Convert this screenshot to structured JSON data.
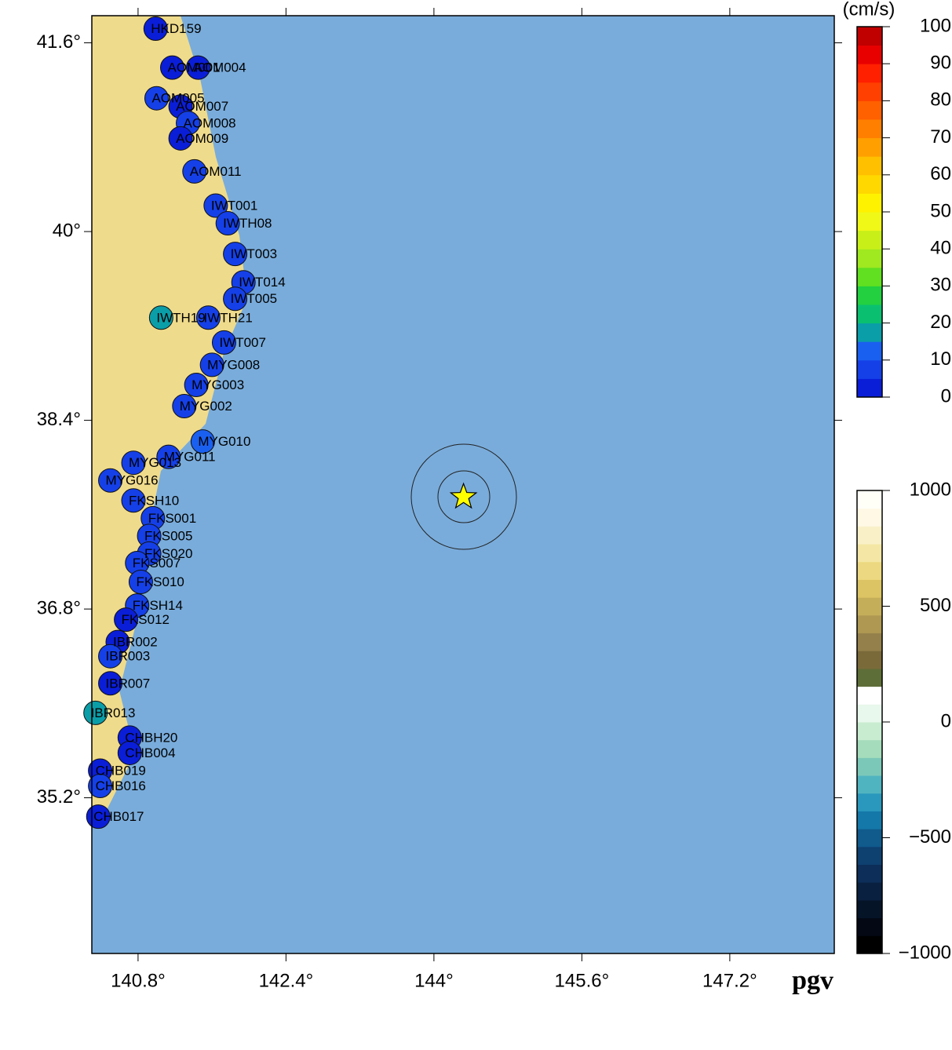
{
  "map": {
    "type": "map",
    "title": "pgv",
    "xlim": [
      140.3,
      148.33
    ],
    "ylim": [
      33.88,
      41.83
    ],
    "xticks": [
      {
        "value": 140.8,
        "label": "140.8°"
      },
      {
        "value": 142.4,
        "label": "142.4°"
      },
      {
        "value": 144,
        "label": "144°"
      },
      {
        "value": 145.6,
        "label": "145.6°"
      },
      {
        "value": 147.2,
        "label": "147.2°"
      }
    ],
    "yticks": [
      {
        "value": 41.6,
        "label": "41.6°"
      },
      {
        "value": 40,
        "label": "40°"
      },
      {
        "value": 38.4,
        "label": "38.4°"
      },
      {
        "value": 36.8,
        "label": "36.8°"
      },
      {
        "value": 35.2,
        "label": "35.2°"
      }
    ],
    "epicenter": {
      "lon": 144.32,
      "lat": 37.75
    },
    "stations": [
      {
        "name": "HKD159",
        "lon": 140.99,
        "lat": 41.72,
        "pgv": 3
      },
      {
        "name": "AOM001",
        "lon": 141.17,
        "lat": 41.39,
        "pgv": 4
      },
      {
        "name": "AOM004",
        "lon": 141.45,
        "lat": 41.39,
        "pgv": 3
      },
      {
        "name": "AOM005",
        "lon": 141.0,
        "lat": 41.13,
        "pgv": 5
      },
      {
        "name": "AOM007",
        "lon": 141.26,
        "lat": 41.06,
        "pgv": 4
      },
      {
        "name": "AOM008",
        "lon": 141.34,
        "lat": 40.92,
        "pgv": 5
      },
      {
        "name": "AOM009",
        "lon": 141.26,
        "lat": 40.79,
        "pgv": 4
      },
      {
        "name": "AOM011",
        "lon": 141.41,
        "lat": 40.51,
        "pgv": 6
      },
      {
        "name": "IWT001",
        "lon": 141.64,
        "lat": 40.22,
        "pgv": 7
      },
      {
        "name": "IWTH08",
        "lon": 141.77,
        "lat": 40.07,
        "pgv": 6
      },
      {
        "name": "IWT003",
        "lon": 141.85,
        "lat": 39.81,
        "pgv": 9
      },
      {
        "name": "IWT014",
        "lon": 141.94,
        "lat": 39.57,
        "pgv": 8
      },
      {
        "name": "IWT005",
        "lon": 141.85,
        "lat": 39.43,
        "pgv": 9
      },
      {
        "name": "IWTH21",
        "lon": 141.56,
        "lat": 39.27,
        "pgv": 7
      },
      {
        "name": "IWTH19",
        "lon": 141.05,
        "lat": 39.27,
        "pgv": 16
      },
      {
        "name": "IWT007",
        "lon": 141.73,
        "lat": 39.06,
        "pgv": 8
      },
      {
        "name": "MYG008",
        "lon": 141.6,
        "lat": 38.87,
        "pgv": 9
      },
      {
        "name": "MYG003",
        "lon": 141.43,
        "lat": 38.7,
        "pgv": 6
      },
      {
        "name": "MYG002",
        "lon": 141.3,
        "lat": 38.52,
        "pgv": 8
      },
      {
        "name": "MYG010",
        "lon": 141.5,
        "lat": 38.22,
        "pgv": 10
      },
      {
        "name": "MYG011",
        "lon": 141.13,
        "lat": 38.09,
        "pgv": 6
      },
      {
        "name": "MYG013",
        "lon": 140.75,
        "lat": 38.04,
        "pgv": 8
      },
      {
        "name": "MYG016",
        "lon": 140.5,
        "lat": 37.89,
        "pgv": 5
      },
      {
        "name": "FKSH10",
        "lon": 140.75,
        "lat": 37.72,
        "pgv": 6
      },
      {
        "name": "FKS001",
        "lon": 140.96,
        "lat": 37.57,
        "pgv": 7
      },
      {
        "name": "FKS005",
        "lon": 140.92,
        "lat": 37.42,
        "pgv": 6
      },
      {
        "name": "FKS020",
        "lon": 140.92,
        "lat": 37.27,
        "pgv": 7
      },
      {
        "name": "FKS007",
        "lon": 140.79,
        "lat": 37.19,
        "pgv": 5
      },
      {
        "name": "FKS010",
        "lon": 140.83,
        "lat": 37.03,
        "pgv": 6
      },
      {
        "name": "FKSH14",
        "lon": 140.79,
        "lat": 36.83,
        "pgv": 5
      },
      {
        "name": "FKS012",
        "lon": 140.67,
        "lat": 36.71,
        "pgv": 4
      },
      {
        "name": "IBR002",
        "lon": 140.58,
        "lat": 36.52,
        "pgv": 4
      },
      {
        "name": "IBR003",
        "lon": 140.5,
        "lat": 36.4,
        "pgv": 5
      },
      {
        "name": "IBR007",
        "lon": 140.5,
        "lat": 36.17,
        "pgv": 4
      },
      {
        "name": "IBR013",
        "lon": 140.34,
        "lat": 35.92,
        "pgv": 17
      },
      {
        "name": "CHBH20",
        "lon": 140.71,
        "lat": 35.71,
        "pgv": 4
      },
      {
        "name": "CHB004",
        "lon": 140.71,
        "lat": 35.58,
        "pgv": 3
      },
      {
        "name": "CHB019",
        "lon": 140.39,
        "lat": 35.43,
        "pgv": 4
      },
      {
        "name": "CHB016",
        "lon": 140.39,
        "lat": 35.3,
        "pgv": 5
      },
      {
        "name": "CHB017",
        "lon": 140.37,
        "lat": 35.04,
        "pgv": 3
      }
    ]
  },
  "pgv_colorbar": {
    "unit": "(cm/s)",
    "range": [
      0,
      100
    ],
    "ticks": [
      0,
      10,
      20,
      30,
      40,
      50,
      60,
      70,
      80,
      90,
      100
    ],
    "colors": [
      "#0a1ed8",
      "#1540e8",
      "#1a60f0",
      "#0a9ea8",
      "#0ac070",
      "#22d040",
      "#60e020",
      "#a0e820",
      "#c8f018",
      "#f0f818",
      "#fff200",
      "#ffd800",
      "#ffc000",
      "#ffa000",
      "#ff8000",
      "#ff6000",
      "#ff4000",
      "#ff2000",
      "#e80000",
      "#c00000"
    ]
  },
  "topo_colorbar": {
    "range": [
      -1000,
      1000
    ],
    "ticks": [
      1000,
      500,
      0,
      {
        "value": -500,
        "label": "−500"
      },
      {
        "value": -1000,
        "label": "−1000"
      }
    ],
    "colors": [
      "#000000",
      "#030814",
      "#061428",
      "#0a2040",
      "#0c2e58",
      "#0e4070",
      "#105a8c",
      "#1478a8",
      "#2a98bc",
      "#50b4c0",
      "#7cc8b8",
      "#a4dcbc",
      "#c8ecd0",
      "#e8f8ec",
      "#ffffff",
      "#5e6e38",
      "#7a6a3a",
      "#94804a",
      "#ae9852",
      "#c4ae5a",
      "#dcc464",
      "#ecd880",
      "#f4e6a4",
      "#faf0c8",
      "#fff8e4",
      "#fffff8"
    ]
  }
}
